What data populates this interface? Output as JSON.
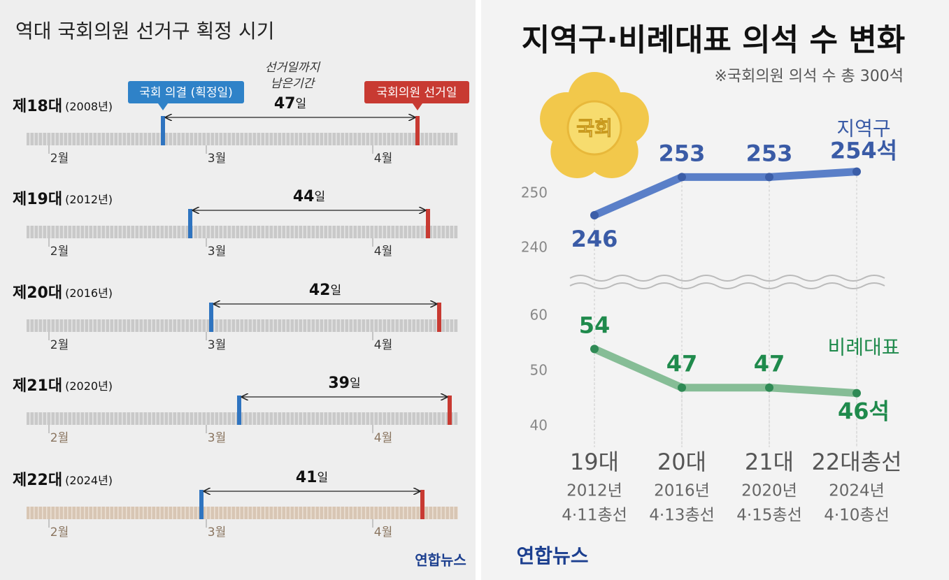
{
  "left": {
    "title": "역대 국회의원 선거구 획정 시기",
    "callout_decision": "국회 의결 (획정일)",
    "callout_election": "국회의원 선거일",
    "remaining_lines": [
      "선거일까지",
      "남은기간"
    ],
    "months": [
      "2월",
      "3월",
      "4월"
    ],
    "day_unit": "일",
    "rows": [
      {
        "label": "제18대",
        "year": "(2008년)",
        "days": "47"
      },
      {
        "label": "제19대",
        "year": "(2012년)",
        "days": "44"
      },
      {
        "label": "제20대",
        "year": "(2016년)",
        "days": "42"
      },
      {
        "label": "제21대",
        "year": "(2020년)",
        "days": "39"
      },
      {
        "label": "제22대",
        "year": "(2024년)",
        "days": "41"
      }
    ]
  },
  "chart_data": {
    "type": "line",
    "title": "지역구·비례대표 의석 수 변화",
    "subtitle": "※국회의원 의석 수 총 300석",
    "emblem": "국회",
    "categories": [
      "19대",
      "20대",
      "21대",
      "22대총선"
    ],
    "category_sublabels": [
      [
        "2012년",
        "4·11총선"
      ],
      [
        "2016년",
        "4·13총선"
      ],
      [
        "2020년",
        "4·15총선"
      ],
      [
        "2024년",
        "4·10총선"
      ]
    ],
    "series": [
      {
        "name": "지역구",
        "color": "#5a7fc8",
        "point_color": "#3c5ea8",
        "label_color": "#3a5ba6",
        "axis": "y2",
        "values": [
          246,
          253,
          253,
          254
        ],
        "value_labels": [
          "246",
          "253",
          "253",
          "254석"
        ]
      },
      {
        "name": "비례대표",
        "color": "#86bd96",
        "point_color": "#2f8a55",
        "label_color": "#1f8a4c",
        "values": [
          54,
          47,
          47,
          46
        ],
        "value_labels": [
          "54",
          "47",
          "47",
          "46석"
        ]
      }
    ],
    "ylim": [
      38,
      62
    ],
    "yticks": [
      40,
      50,
      60
    ],
    "y2lim": [
      236,
      256
    ],
    "y2ticks": [
      240,
      250
    ]
  },
  "logos": [
    "연합뉴스",
    "연합뉴스"
  ]
}
